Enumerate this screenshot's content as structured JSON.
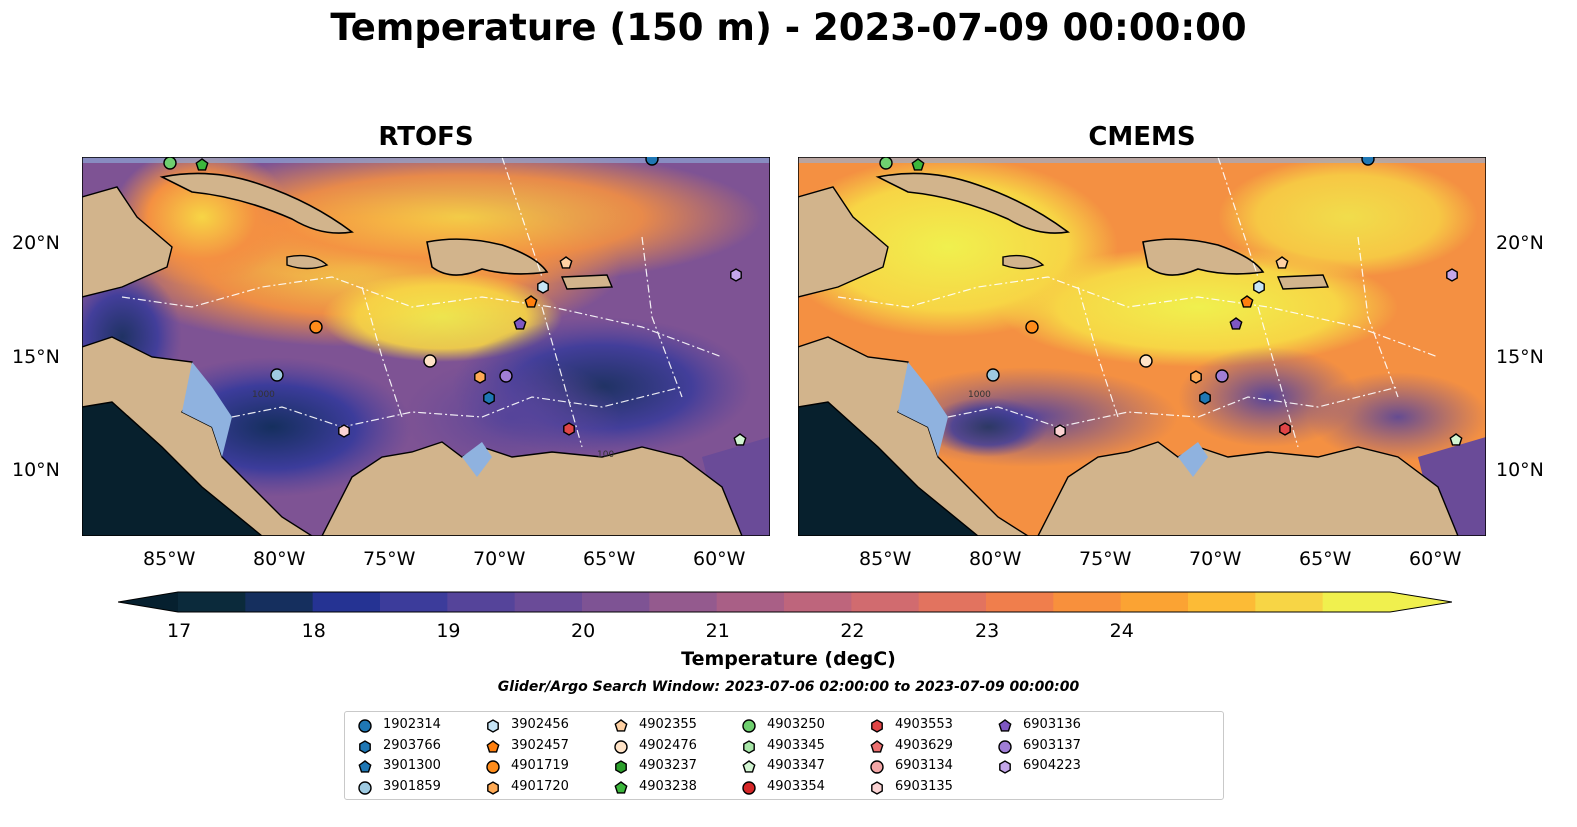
{
  "title": "Temperature (150 m) - 2023-07-09 00:00:00",
  "panels": [
    {
      "title": "RTOFS"
    },
    {
      "title": "CMEMS"
    }
  ],
  "axes": {
    "lon_ticks": [
      "85°W",
      "80°W",
      "75°W",
      "70°W",
      "65°W",
      "60°W"
    ],
    "lat_ticks": [
      "20°N",
      "15°N",
      "10°N"
    ]
  },
  "colorbar": {
    "label": "Temperature (degC)",
    "ticks": [
      "17",
      "18",
      "19",
      "20",
      "21",
      "22",
      "23",
      "24"
    ],
    "colors": [
      "#0b2a3b",
      "#152f5e",
      "#253393",
      "#3c3c9b",
      "#55449a",
      "#6a4b98",
      "#7e5394",
      "#945a8e",
      "#a95f86",
      "#be657c",
      "#d16b6f",
      "#e2735f",
      "#f07e4c",
      "#f8903c",
      "#fba333",
      "#fcbb36",
      "#f7d545",
      "#f0f04e"
    ],
    "under_color": "#06202f",
    "over_color": "#f0f04e"
  },
  "search_window": "Glider/Argo Search Window: 2023-07-06 02:00:00 to 2023-07-09 00:00:00",
  "legend": [
    {
      "id": "1902314",
      "shape": "circle",
      "color": "#1f77b4"
    },
    {
      "id": "2903766",
      "shape": "hexagon",
      "color": "#1f77b4"
    },
    {
      "id": "3901300",
      "shape": "pentagon",
      "color": "#1f77b4"
    },
    {
      "id": "3901859",
      "shape": "circle",
      "color": "#9ecae1"
    },
    {
      "id": "3902456",
      "shape": "hexagon",
      "color": "#c6e4f5"
    },
    {
      "id": "3902457",
      "shape": "pentagon",
      "color": "#ff7f0e"
    },
    {
      "id": "4901719",
      "shape": "circle",
      "color": "#ff8c1a"
    },
    {
      "id": "4901720",
      "shape": "hexagon",
      "color": "#ffaa55"
    },
    {
      "id": "4902355",
      "shape": "pentagon",
      "color": "#ffd1a3"
    },
    {
      "id": "4902476",
      "shape": "circle",
      "color": "#ffe3c7"
    },
    {
      "id": "4903237",
      "shape": "hexagon",
      "color": "#2ca02c"
    },
    {
      "id": "4903238",
      "shape": "pentagon",
      "color": "#3cb73c"
    },
    {
      "id": "4903250",
      "shape": "circle",
      "color": "#6fcf6f"
    },
    {
      "id": "4903345",
      "shape": "hexagon",
      "color": "#a7e6a7"
    },
    {
      "id": "4903347",
      "shape": "pentagon",
      "color": "#d2f5d2"
    },
    {
      "id": "4903354",
      "shape": "circle",
      "color": "#d62728"
    },
    {
      "id": "4903553",
      "shape": "hexagon",
      "color": "#e04546"
    },
    {
      "id": "4903629",
      "shape": "pentagon",
      "color": "#ec7070"
    },
    {
      "id": "6903134",
      "shape": "circle",
      "color": "#f3a6a6"
    },
    {
      "id": "6903135",
      "shape": "hexagon",
      "color": "#fbd3d3"
    },
    {
      "id": "6903136",
      "shape": "pentagon",
      "color": "#7e57c2"
    },
    {
      "id": "6903137",
      "shape": "circle",
      "color": "#a07ed6"
    },
    {
      "id": "6904223",
      "shape": "hexagon",
      "color": "#c4a7ea"
    }
  ],
  "contour_labels": [
    "1000",
    "100"
  ],
  "colors": {
    "land": "#d2b48c",
    "shelf": "#8fb2df",
    "deep": "#07202d"
  }
}
